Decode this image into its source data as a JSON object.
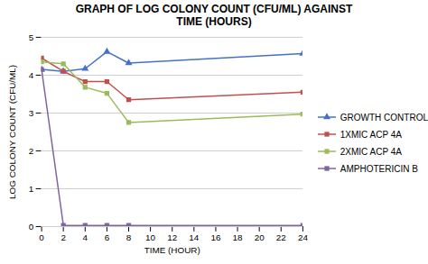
{
  "chart_data": {
    "type": "line",
    "title": "GRAPH OF LOG COLONY COUNT (CFU/ML) AGAINST\nTIME (HOURS)",
    "xlabel": "TIME (HOUR)",
    "ylabel": "LOG COLONY COUNT (CFU/ML)",
    "x": [
      0,
      2,
      4,
      6,
      8,
      24
    ],
    "series": [
      {
        "name": "GROWTH CONTROL",
        "color": "#4472C4",
        "marker": "triangle",
        "values": [
          4.15,
          4.1,
          4.17,
          4.62,
          4.32,
          4.57
        ]
      },
      {
        "name": "1XMIC ACP 4A",
        "color": "#C0504D",
        "marker": "square",
        "values": [
          4.45,
          4.1,
          3.83,
          3.83,
          3.35,
          3.55
        ]
      },
      {
        "name": "2XMIC ACP 4A",
        "color": "#9BBB59",
        "marker": "square",
        "values": [
          4.35,
          4.3,
          3.68,
          3.52,
          2.75,
          2.97
        ]
      },
      {
        "name": "AMPHOTERICIN B",
        "color": "#8064A2",
        "marker": "square",
        "values": [
          4.15,
          0.03,
          0.03,
          0.03,
          0.03,
          0.03
        ]
      }
    ],
    "xlim": [
      0,
      24
    ],
    "ylim": [
      0,
      5
    ],
    "xticks": [
      0,
      2,
      4,
      6,
      8,
      10,
      12,
      14,
      16,
      18,
      20,
      22,
      24
    ],
    "yticks": [
      0,
      1,
      2,
      3,
      4,
      5
    ],
    "grid": "y",
    "legend": "right"
  }
}
